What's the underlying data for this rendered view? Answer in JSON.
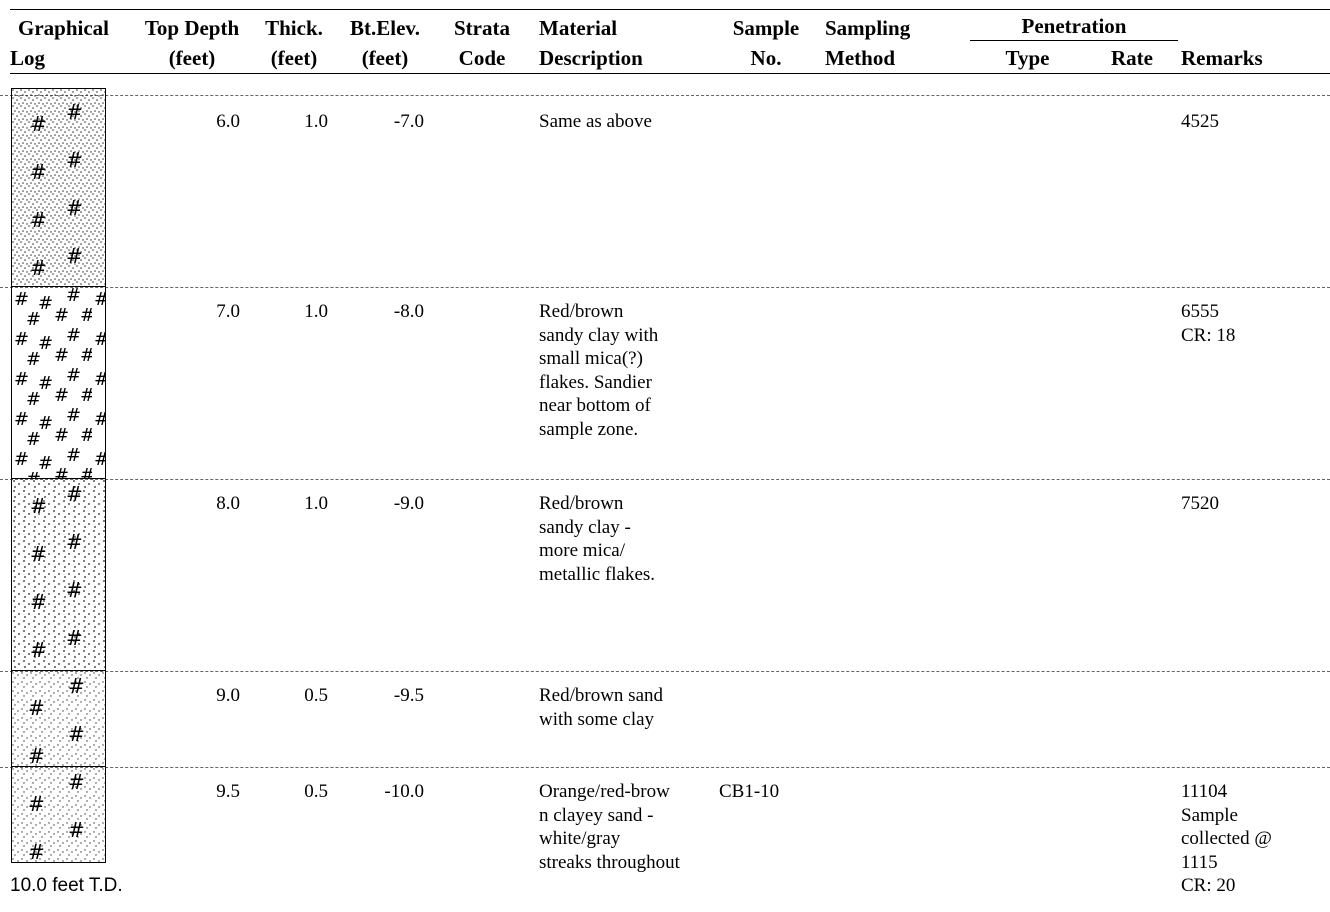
{
  "header": {
    "graphical_log": [
      "Graphical",
      "Log"
    ],
    "top_depth": [
      "Top Depth",
      "(feet)"
    ],
    "thick": [
      "Thick.",
      "(feet)"
    ],
    "bt_elev": [
      "Bt.Elev.",
      "(feet)"
    ],
    "strata": [
      "Strata",
      "Code"
    ],
    "material": [
      "Material",
      "Description"
    ],
    "sample": [
      "Sample",
      "No."
    ],
    "sampling": [
      "Sampling",
      "Method"
    ],
    "penetration": "Penetration",
    "pen_type": "Type",
    "pen_rate": "Rate",
    "remarks": "Remarks"
  },
  "rows": [
    {
      "top_depth": "6.0",
      "thick": "1.0",
      "bt_elev": "-7.0",
      "strata": "",
      "material": "Same as above",
      "sample": "",
      "sampling": "",
      "pen_type": "",
      "pen_rate": "",
      "remarks": "4525",
      "pattern": "sandy-clay"
    },
    {
      "top_depth": "7.0",
      "thick": "1.0",
      "bt_elev": "-8.0",
      "strata": "",
      "material": "Red/brown\nsandy clay with\nsmall mica(?)\nflakes. Sandier\nnear bottom of\nsample zone.",
      "sample": "",
      "sampling": "",
      "pen_type": "",
      "pen_rate": "",
      "remarks": "6555\nCR: 18",
      "pattern": "clay"
    },
    {
      "top_depth": "8.0",
      "thick": "1.0",
      "bt_elev": "-9.0",
      "strata": "",
      "material": "Red/brown\nsandy clay -\nmore mica/\nmetallic flakes.",
      "sample": "",
      "sampling": "",
      "pen_type": "",
      "pen_rate": "",
      "remarks": "7520",
      "pattern": "sandy-clay-coarse"
    },
    {
      "top_depth": "9.0",
      "thick": "0.5",
      "bt_elev": "-9.5",
      "strata": "",
      "material": "Red/brown sand\nwith some clay",
      "sample": "",
      "sampling": "",
      "pen_type": "",
      "pen_rate": "",
      "remarks": "",
      "pattern": "clayey-sand"
    },
    {
      "top_depth": "9.5",
      "thick": "0.5",
      "bt_elev": "-10.0",
      "strata": "",
      "material": "Orange/red-brow\nn clayey sand -\nwhite/gray\nstreaks throughout",
      "sample": "CB1-10",
      "sampling": "",
      "pen_type": "",
      "pen_rate": "",
      "remarks": "11104\nSample\ncollected @\n1115\nCR: 20",
      "pattern": "clayey-sand"
    }
  ],
  "footer": {
    "total_depth": "10.0 feet T.D."
  }
}
